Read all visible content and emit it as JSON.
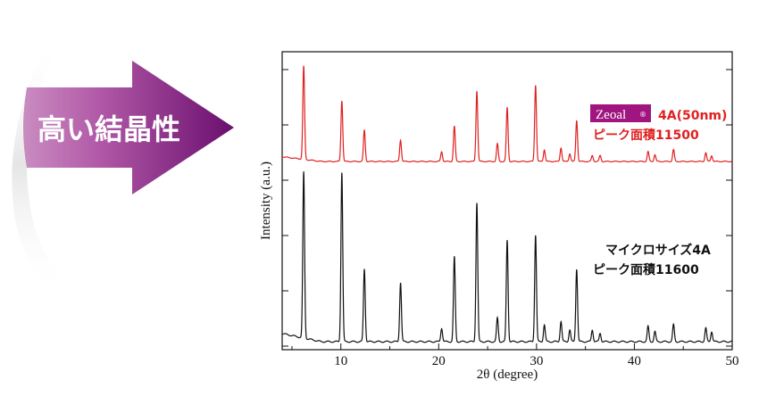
{
  "banner": {
    "text": "高い結晶性",
    "colors": {
      "arrow_dark": "#6a0f6e",
      "arrow_light": "#b25aa8",
      "text": "#ffffff"
    }
  },
  "chart_data": {
    "type": "line",
    "title": "",
    "xlabel": "2θ (degree)",
    "ylabel": "Intensity (a.u.)",
    "xlim": [
      4,
      50
    ],
    "xticks": [
      10,
      20,
      30,
      40,
      50
    ],
    "ytick_labels": "none",
    "grid": false,
    "series": [
      {
        "name": "4A(50nm)",
        "brand": "Zeoal",
        "brand_mark": "®",
        "name_detail": "ピーク面積11500",
        "color": "#e02020",
        "offset": "top",
        "peaks": [
          {
            "x": 6.2,
            "h": 0.95
          },
          {
            "x": 10.1,
            "h": 0.62
          },
          {
            "x": 12.4,
            "h": 0.32
          },
          {
            "x": 16.1,
            "h": 0.22
          },
          {
            "x": 20.3,
            "h": 0.1
          },
          {
            "x": 21.6,
            "h": 0.36
          },
          {
            "x": 23.9,
            "h": 0.72
          },
          {
            "x": 26.0,
            "h": 0.18
          },
          {
            "x": 27.0,
            "h": 0.55
          },
          {
            "x": 29.9,
            "h": 0.78
          },
          {
            "x": 30.8,
            "h": 0.12
          },
          {
            "x": 32.5,
            "h": 0.14
          },
          {
            "x": 33.4,
            "h": 0.08
          },
          {
            "x": 34.1,
            "h": 0.42
          },
          {
            "x": 35.7,
            "h": 0.06
          },
          {
            "x": 36.5,
            "h": 0.06
          },
          {
            "x": 41.4,
            "h": 0.1
          },
          {
            "x": 42.1,
            "h": 0.07
          },
          {
            "x": 44.0,
            "h": 0.12
          },
          {
            "x": 47.3,
            "h": 0.09
          },
          {
            "x": 47.9,
            "h": 0.06
          }
        ]
      },
      {
        "name": "マイクロサイズ4A",
        "name_detail": "ピーク面積11600",
        "color": "#111111",
        "offset": "bottom",
        "peaks": [
          {
            "x": 6.2,
            "h": 0.98
          },
          {
            "x": 10.1,
            "h": 1.0
          },
          {
            "x": 12.4,
            "h": 0.43
          },
          {
            "x": 16.1,
            "h": 0.35
          },
          {
            "x": 20.3,
            "h": 0.08
          },
          {
            "x": 21.6,
            "h": 0.5
          },
          {
            "x": 23.9,
            "h": 0.82
          },
          {
            "x": 26.0,
            "h": 0.14
          },
          {
            "x": 27.0,
            "h": 0.6
          },
          {
            "x": 29.9,
            "h": 0.63
          },
          {
            "x": 30.8,
            "h": 0.1
          },
          {
            "x": 32.5,
            "h": 0.12
          },
          {
            "x": 33.4,
            "h": 0.07
          },
          {
            "x": 34.1,
            "h": 0.43
          },
          {
            "x": 35.7,
            "h": 0.07
          },
          {
            "x": 36.5,
            "h": 0.05
          },
          {
            "x": 41.4,
            "h": 0.09
          },
          {
            "x": 42.1,
            "h": 0.06
          },
          {
            "x": 44.0,
            "h": 0.1
          },
          {
            "x": 47.3,
            "h": 0.08
          },
          {
            "x": 47.9,
            "h": 0.06
          }
        ]
      }
    ],
    "legend": "inline-labels-right"
  }
}
